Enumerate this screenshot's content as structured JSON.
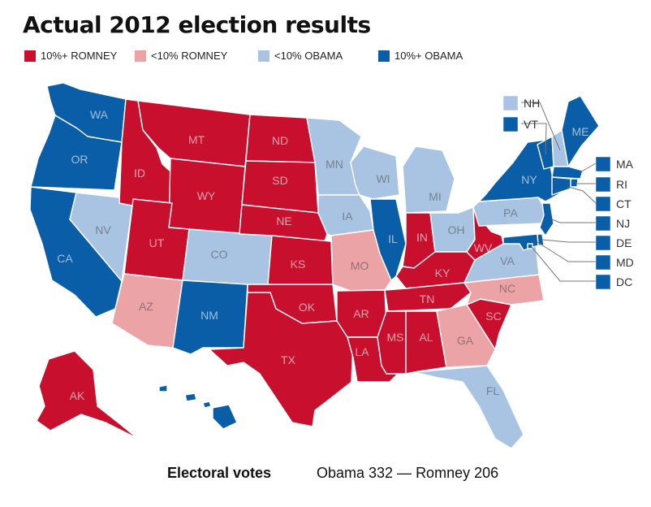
{
  "title": "Actual 2012 election results",
  "legend": [
    {
      "key": "r_strong",
      "label": "10%+ ROMNEY",
      "color": "#c8102e"
    },
    {
      "key": "r_lean",
      "label": "<10% ROMNEY",
      "color": "#eba3a6"
    },
    {
      "key": "d_lean",
      "label": "<10% OBAMA",
      "color": "#a9c4e3"
    },
    {
      "key": "d_strong",
      "label": "10%+ OBAMA",
      "color": "#0a5ea8"
    }
  ],
  "states": [
    {
      "abbr": "WA",
      "cat": "d_strong",
      "icon": "state-washington"
    },
    {
      "abbr": "OR",
      "cat": "d_strong",
      "icon": "state-oregon"
    },
    {
      "abbr": "CA",
      "cat": "d_strong",
      "icon": "state-california"
    },
    {
      "abbr": "NV",
      "cat": "d_lean",
      "icon": "state-nevada"
    },
    {
      "abbr": "ID",
      "cat": "r_strong",
      "icon": "state-idaho"
    },
    {
      "abbr": "MT",
      "cat": "r_strong",
      "icon": "state-montana"
    },
    {
      "abbr": "WY",
      "cat": "r_strong",
      "icon": "state-wyoming"
    },
    {
      "abbr": "UT",
      "cat": "r_strong",
      "icon": "state-utah"
    },
    {
      "abbr": "CO",
      "cat": "d_lean",
      "icon": "state-colorado"
    },
    {
      "abbr": "AZ",
      "cat": "r_lean",
      "icon": "state-arizona"
    },
    {
      "abbr": "NM",
      "cat": "d_strong",
      "icon": "state-new-mexico"
    },
    {
      "abbr": "ND",
      "cat": "r_strong",
      "icon": "state-north-dakota"
    },
    {
      "abbr": "SD",
      "cat": "r_strong",
      "icon": "state-south-dakota"
    },
    {
      "abbr": "NE",
      "cat": "r_strong",
      "icon": "state-nebraska"
    },
    {
      "abbr": "KS",
      "cat": "r_strong",
      "icon": "state-kansas"
    },
    {
      "abbr": "OK",
      "cat": "r_strong",
      "icon": "state-oklahoma"
    },
    {
      "abbr": "TX",
      "cat": "r_strong",
      "icon": "state-texas"
    },
    {
      "abbr": "MN",
      "cat": "d_lean",
      "icon": "state-minnesota"
    },
    {
      "abbr": "IA",
      "cat": "d_lean",
      "icon": "state-iowa"
    },
    {
      "abbr": "MO",
      "cat": "r_lean",
      "icon": "state-missouri"
    },
    {
      "abbr": "AR",
      "cat": "r_strong",
      "icon": "state-arkansas"
    },
    {
      "abbr": "LA",
      "cat": "r_strong",
      "icon": "state-louisiana"
    },
    {
      "abbr": "WI",
      "cat": "d_lean",
      "icon": "state-wisconsin"
    },
    {
      "abbr": "IL",
      "cat": "d_strong",
      "icon": "state-illinois"
    },
    {
      "abbr": "MI",
      "cat": "d_lean",
      "icon": "state-michigan"
    },
    {
      "abbr": "IN",
      "cat": "r_strong",
      "icon": "state-indiana"
    },
    {
      "abbr": "OH",
      "cat": "d_lean",
      "icon": "state-ohio"
    },
    {
      "abbr": "KY",
      "cat": "r_strong",
      "icon": "state-kentucky"
    },
    {
      "abbr": "TN",
      "cat": "r_strong",
      "icon": "state-tennessee"
    },
    {
      "abbr": "MS",
      "cat": "r_strong",
      "icon": "state-mississippi"
    },
    {
      "abbr": "AL",
      "cat": "r_strong",
      "icon": "state-alabama"
    },
    {
      "abbr": "GA",
      "cat": "r_lean",
      "icon": "state-georgia"
    },
    {
      "abbr": "FL",
      "cat": "d_lean",
      "icon": "state-florida"
    },
    {
      "abbr": "SC",
      "cat": "r_strong",
      "icon": "state-south-carolina"
    },
    {
      "abbr": "NC",
      "cat": "r_lean",
      "icon": "state-north-carolina"
    },
    {
      "abbr": "VA",
      "cat": "d_lean",
      "icon": "state-virginia"
    },
    {
      "abbr": "WV",
      "cat": "r_strong",
      "icon": "state-west-virginia"
    },
    {
      "abbr": "PA",
      "cat": "d_lean",
      "icon": "state-pennsylvania"
    },
    {
      "abbr": "NY",
      "cat": "d_strong",
      "icon": "state-new-york"
    },
    {
      "abbr": "VT",
      "cat": "d_strong",
      "icon": "state-vermont"
    },
    {
      "abbr": "NH",
      "cat": "d_lean",
      "icon": "state-new-hampshire"
    },
    {
      "abbr": "ME",
      "cat": "d_strong",
      "icon": "state-maine"
    },
    {
      "abbr": "MA",
      "cat": "d_strong",
      "icon": "state-massachusetts"
    },
    {
      "abbr": "RI",
      "cat": "d_strong",
      "icon": "state-rhode-island"
    },
    {
      "abbr": "CT",
      "cat": "d_strong",
      "icon": "state-connecticut"
    },
    {
      "abbr": "NJ",
      "cat": "d_strong",
      "icon": "state-new-jersey"
    },
    {
      "abbr": "DE",
      "cat": "d_strong",
      "icon": "state-delaware"
    },
    {
      "abbr": "MD",
      "cat": "d_strong",
      "icon": "state-maryland"
    },
    {
      "abbr": "DC",
      "cat": "d_strong",
      "icon": "district-of-columbia"
    },
    {
      "abbr": "AK",
      "cat": "r_strong",
      "icon": "state-alaska"
    },
    {
      "abbr": "HI",
      "cat": "d_strong",
      "icon": "state-hawaii"
    }
  ],
  "footer": {
    "label": "Electoral votes",
    "value": "Obama 332 — Romney 206"
  }
}
